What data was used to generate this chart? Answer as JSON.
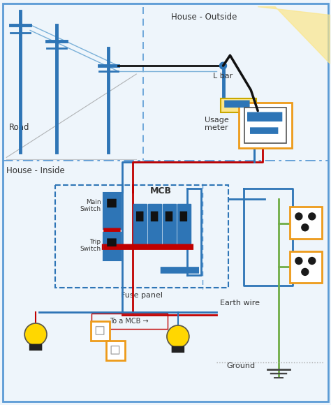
{
  "bg_color": "#eef5fb",
  "outer_border_color": "#5b9bd5",
  "title_outside": "House - Outside",
  "title_inside": "House - Inside",
  "road_label": "Road",
  "lbar_label": "L bar",
  "usage_meter_label": "Usage\nmeter",
  "fuse_panel_label": "Fuse panel",
  "mcb_label": "MCB",
  "main_switch_label": "Main\nSwitch",
  "trip_switch_label": "Trip\nSwitch",
  "earth_wire_label": "Earth wire",
  "ground_label": "Ground",
  "toa_mcb_label": "To a MCB →",
  "pole_color": "#2e75b6",
  "wire_blue": "#2e75b6",
  "wire_red": "#c00000",
  "wire_black": "#111111",
  "wire_green": "#70ad47",
  "orange_box": "#ed9b1a",
  "dashed_box_color": "#2e75b6",
  "lbar_yellow": "#fce68a",
  "lbar_yellow_border": "#c8a800",
  "sunbeam_color": "#fce68a",
  "road_line_color": "#888888"
}
